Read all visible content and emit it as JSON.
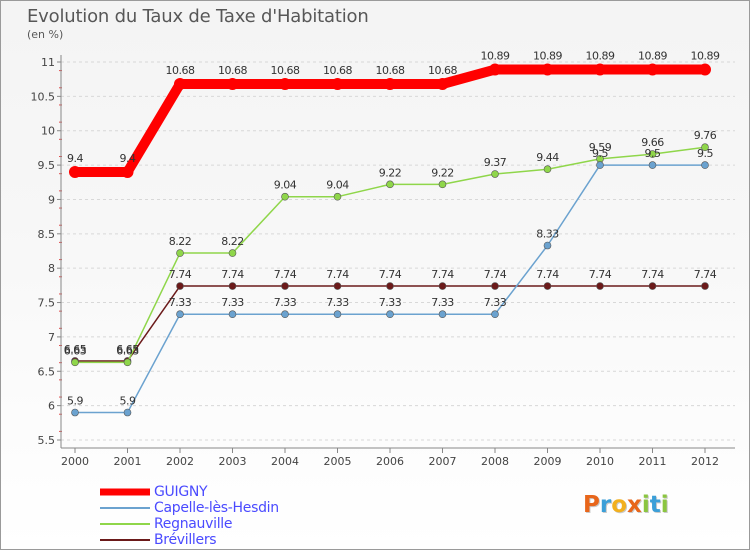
{
  "chart_data": {
    "type": "line",
    "title": "Evolution du Taux de Taxe d'Habitation",
    "subtitle": "(en %)",
    "xlabel": "",
    "ylabel": "",
    "x": [
      2000,
      2001,
      2002,
      2003,
      2004,
      2005,
      2006,
      2007,
      2008,
      2009,
      2010,
      2011,
      2012
    ],
    "ylim": [
      5.5,
      11
    ],
    "yticks": [
      "5.5",
      "6",
      "6.5",
      "7",
      "7.5",
      "8",
      "8.5",
      "9",
      "9.5",
      "10",
      "10.5",
      "11"
    ],
    "grid": "dashed horizontal",
    "legend_position": "bottom-left",
    "series": [
      {
        "name": "Brévillers",
        "color": "#6b1a1a",
        "values": [
          6.65,
          6.65,
          7.74,
          7.74,
          7.74,
          7.74,
          7.74,
          7.74,
          7.74,
          7.74,
          7.74,
          7.74,
          7.74
        ],
        "labels": [
          "6.65",
          "6.65",
          "7.74",
          "7.74",
          "7.74",
          "7.74",
          "7.74",
          "7.74",
          "7.74",
          "7.74",
          "7.74",
          "7.74",
          "7.74"
        ]
      },
      {
        "name": "Regnauville",
        "color": "#8fd64a",
        "values": [
          6.63,
          6.63,
          8.22,
          8.22,
          9.04,
          9.04,
          9.22,
          9.22,
          9.37,
          9.44,
          9.59,
          9.66,
          9.76
        ],
        "labels": [
          "6.63",
          "6.63",
          "8.22",
          "8.22",
          "9.04",
          "9.04",
          "9.22",
          "9.22",
          "9.37",
          "9.44",
          "9.59",
          "9.66",
          "9.76"
        ]
      },
      {
        "name": "Capelle-lès-Hesdin",
        "color": "#6ba2cf",
        "values": [
          5.9,
          5.9,
          7.33,
          7.33,
          7.33,
          7.33,
          7.33,
          7.33,
          7.33,
          8.33,
          9.5,
          9.5,
          9.5
        ],
        "labels": [
          "5.9",
          "5.9",
          "7.33",
          "7.33",
          "7.33",
          "7.33",
          "7.33",
          "7.33",
          "7.33",
          "8.33",
          "9.5",
          "9.5",
          "9.5"
        ]
      },
      {
        "name": "GUIGNY",
        "color": "#ff0000",
        "values": [
          9.4,
          9.4,
          10.68,
          10.68,
          10.68,
          10.68,
          10.68,
          10.68,
          10.89,
          10.89,
          10.89,
          10.89,
          10.89
        ],
        "labels": [
          "9.4",
          "9.4",
          "10.68",
          "10.68",
          "10.68",
          "10.68",
          "10.68",
          "10.68",
          "10.89",
          "10.89",
          "10.89",
          "10.89",
          "10.89"
        ]
      }
    ]
  },
  "legend": [
    {
      "name": "GUIGNY",
      "color": "#ff0000"
    },
    {
      "name": "Capelle-lès-Hesdin",
      "color": "#6ba2cf"
    },
    {
      "name": "Regnauville",
      "color": "#8fd64a"
    },
    {
      "name": "Brévillers",
      "color": "#6b1a1a"
    }
  ],
  "logo": {
    "text": "Proxiti",
    "letters": [
      {
        "ch": "P",
        "color": "#e8661b"
      },
      {
        "ch": "r",
        "color": "#3b9fd8"
      },
      {
        "ch": "o",
        "color": "#f2b01e"
      },
      {
        "ch": "x",
        "color": "#e8661b"
      },
      {
        "ch": "i",
        "color": "#8bc540"
      },
      {
        "ch": "t",
        "color": "#3b9fd8"
      },
      {
        "ch": "i",
        "color": "#8bc540"
      }
    ]
  }
}
